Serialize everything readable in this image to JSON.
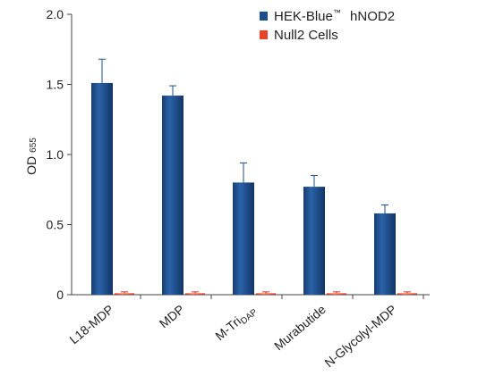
{
  "chart_data": {
    "type": "bar",
    "title": "",
    "xlabel": "",
    "ylabel": "OD",
    "ylabel_sub": "655",
    "ylim": [
      0,
      2.0
    ],
    "yticks": [
      {
        "value": 0,
        "label": "0"
      },
      {
        "value": 0.5,
        "label": "0.5"
      },
      {
        "value": 1.0,
        "label": "1.0"
      },
      {
        "value": 1.5,
        "label": "1.5"
      },
      {
        "value": 2.0,
        "label": "2.0"
      }
    ],
    "grid": false,
    "legend_position": "top-right",
    "categories": [
      {
        "main": "L18-MDP",
        "sub": ""
      },
      {
        "main": "MDP",
        "sub": ""
      },
      {
        "main": "M-Tri",
        "sub": "DAP"
      },
      {
        "main": "Murabutide",
        "sub": ""
      },
      {
        "main": "N-Glycolyl-MDP",
        "sub": ""
      }
    ],
    "series": [
      {
        "name_main": "HEK-Blue",
        "name_sup": "™",
        "name_rest": " hNOD2",
        "color": "#1f4e8c",
        "values": [
          1.51,
          1.42,
          0.8,
          0.77,
          0.58
        ],
        "errors": [
          0.17,
          0.07,
          0.14,
          0.08,
          0.06
        ]
      },
      {
        "name_main": "Null2 Cells",
        "name_sup": "",
        "name_rest": "",
        "color": "#e8442c",
        "values": [
          0.01,
          0.01,
          0.01,
          0.01,
          0.01
        ],
        "errors": [
          0.01,
          0.01,
          0.01,
          0.01,
          0.01
        ]
      }
    ]
  }
}
